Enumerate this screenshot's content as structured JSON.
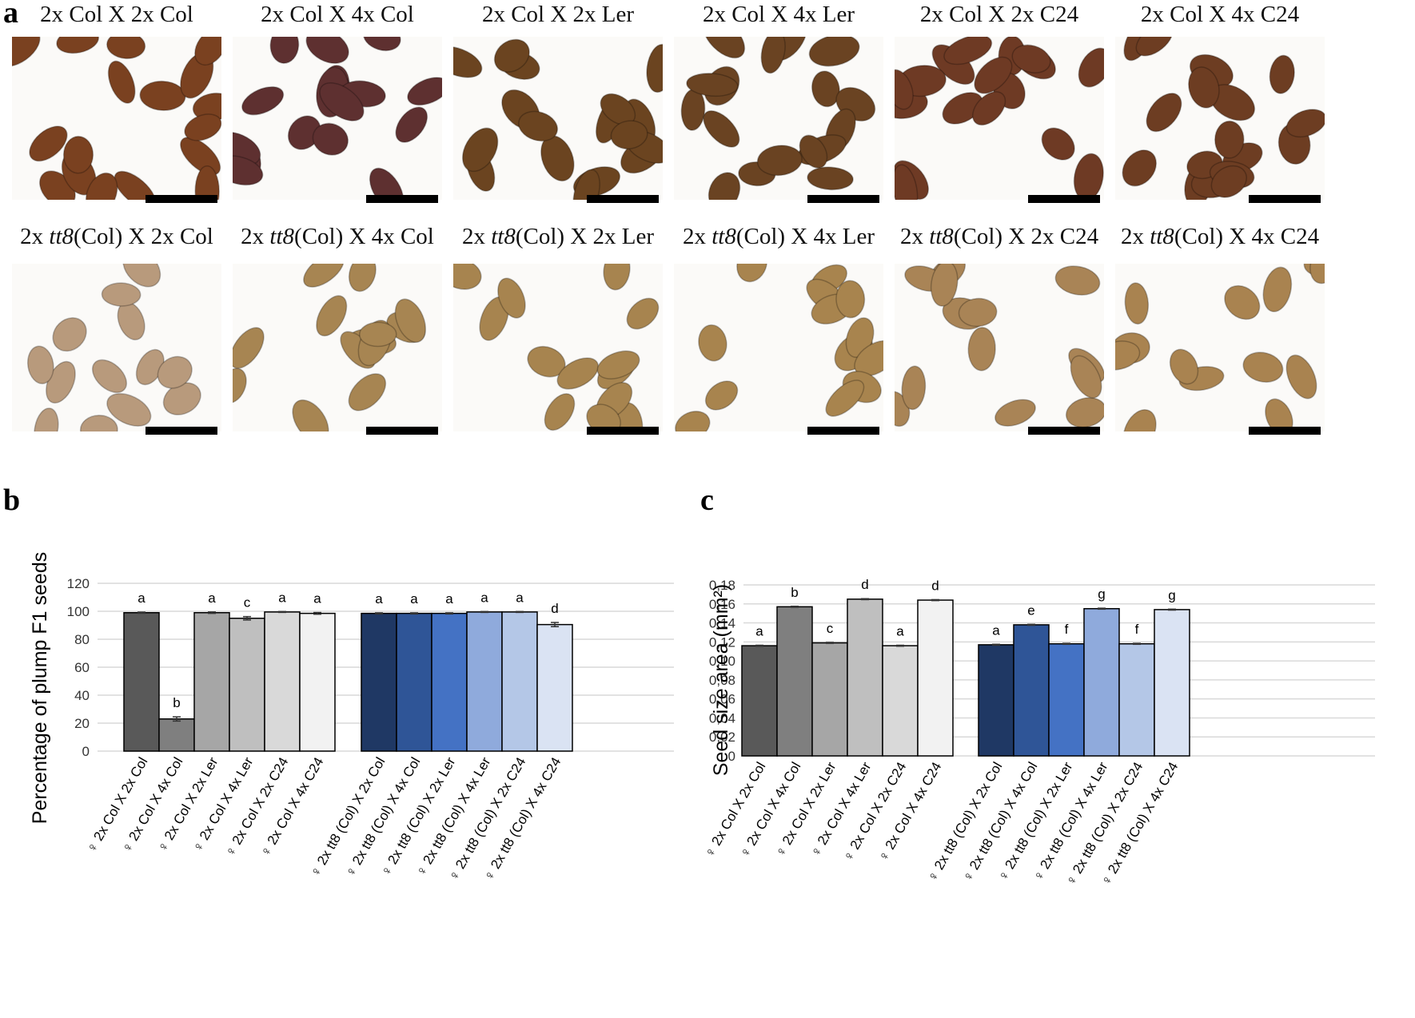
{
  "panel_labels": {
    "a": "a",
    "b": "b",
    "c": "c"
  },
  "panel_a": {
    "photos": [
      {
        "prefix": "2x Col X 2x Col",
        "italic": "",
        "suffix": "",
        "color": "#7a4120"
      },
      {
        "prefix": "2x Col X 4x Col",
        "italic": "",
        "suffix": "",
        "color": "#5e3030"
      },
      {
        "prefix": "2x Col X 2x Ler",
        "italic": "",
        "suffix": "",
        "color": "#6b4420"
      },
      {
        "prefix": "2x Col X 4x Ler",
        "italic": "",
        "suffix": "",
        "color": "#6a4322"
      },
      {
        "prefix": "2x Col X 2x C24",
        "italic": "",
        "suffix": "",
        "color": "#6e3a24"
      },
      {
        "prefix": "2x Col X 4x C24",
        "italic": "",
        "suffix": "",
        "color": "#6d3d22"
      },
      {
        "prefix": "2x ",
        "italic": "tt8",
        "suffix": "(Col) X 2x Col",
        "color": "#b89a7c"
      },
      {
        "prefix": "2x ",
        "italic": "tt8",
        "suffix": "(Col) X 4x Col",
        "color": "#a78552"
      },
      {
        "prefix": "2x ",
        "italic": "tt8",
        "suffix": "(Col) X 2x Ler",
        "color": "#a7844f"
      },
      {
        "prefix": "2x ",
        "italic": "tt8",
        "suffix": "(Col) X 4x Ler",
        "color": "#a8844e"
      },
      {
        "prefix": "2x ",
        "italic": "tt8",
        "suffix": "(Col) X 2x C24",
        "color": "#a98456"
      },
      {
        "prefix": "2x ",
        "italic": "tt8",
        "suffix": "(Col) X 4x C24",
        "color": "#a98350"
      }
    ]
  },
  "chart_data": [
    {
      "type": "bar",
      "panel": "b",
      "ylabel": "Percentage of plump F1 seeds",
      "ylim": [
        0,
        120
      ],
      "yticks": [
        "0",
        "20",
        "40",
        "60",
        "80",
        "100",
        "120"
      ],
      "grid": true,
      "categories": [
        "♀ 2x Col X 2x Col",
        "♀ 2x Col X 4x Col",
        "♀ 2x Col X 2x Ler",
        "♀ 2x Col X 4x Ler",
        "♀ 2x Col X 2x C24",
        "♀ 2x Col X 4x C24",
        "♀ 2x tt8 (Col) X 2x Col",
        "♀ 2x tt8 (Col) X 4x Col",
        "♀ 2x tt8 (Col) X 2x Ler",
        "♀ 2x tt8 (Col) X 4x Ler",
        "♀ 2x tt8 (Col) X 2x C24",
        "♀ 2x tt8 (Col) X 4x C24"
      ],
      "values": [
        99,
        23,
        99,
        95,
        99.5,
        98.5,
        98.5,
        98.5,
        98.5,
        99.5,
        99.5,
        90.5
      ],
      "errors": [
        0.4,
        1.5,
        0.5,
        1.2,
        0.3,
        0.6,
        0.4,
        0.4,
        0.4,
        0.3,
        0.3,
        1.5
      ],
      "letters": [
        "a",
        "b",
        "a",
        "c",
        "a",
        "a",
        "a",
        "a",
        "a",
        "a",
        "a",
        "d"
      ],
      "colors": [
        "#595959",
        "#7f7f7f",
        "#a6a6a6",
        "#bfbfbf",
        "#d9d9d9",
        "#f2f2f2",
        "#1f3864",
        "#2f5597",
        "#4472c4",
        "#8faadc",
        "#b4c7e7",
        "#dae3f3"
      ]
    },
    {
      "type": "bar",
      "panel": "c",
      "ylabel": "Seed size area (mm²)",
      "ylim": [
        0,
        0.18
      ],
      "yticks": [
        "0",
        "0,02",
        "0,04",
        "0,06",
        "0,08",
        "0,10",
        "0,12",
        "0,14",
        "0,16",
        "0,18"
      ],
      "grid": true,
      "categories": [
        "♀ 2x Col X 2x Col",
        "♀ 2x Col X 4x Col",
        "♀ 2x Col X 2x Ler",
        "♀ 2x Col X 4x Ler",
        "♀ 2x Col X 2x C24",
        "♀ 2x Col X 4x C24",
        "♀ 2x tt8 (Col) X 2x Col",
        "♀ 2x tt8 (Col) X 4x Col",
        "♀ 2x tt8 (Col) X 2x Ler",
        "♀ 2x tt8 (Col) X 4x Ler",
        "♀ 2x tt8 (Col) X 2x C24",
        "♀ 2x tt8 (Col) X 4x C24"
      ],
      "values": [
        0.116,
        0.157,
        0.119,
        0.165,
        0.116,
        0.164,
        0.117,
        0.138,
        0.118,
        0.155,
        0.118,
        0.154
      ],
      "errors": [
        0.0005,
        0.0005,
        0.0005,
        0.0005,
        0.0005,
        0.0005,
        0.0005,
        0.0005,
        0.0005,
        0.0005,
        0.0005,
        0.0005
      ],
      "letters": [
        "a",
        "b",
        "c",
        "d",
        "a",
        "d",
        "a",
        "e",
        "f",
        "g",
        "f",
        "g"
      ],
      "colors": [
        "#595959",
        "#7f7f7f",
        "#a6a6a6",
        "#bfbfbf",
        "#d9d9d9",
        "#f2f2f2",
        "#1f3864",
        "#2f5597",
        "#4472c4",
        "#8faadc",
        "#b4c7e7",
        "#dae3f3"
      ]
    }
  ]
}
